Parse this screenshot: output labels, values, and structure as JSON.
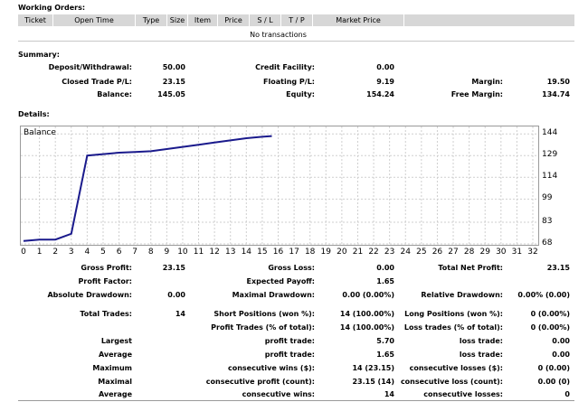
{
  "working_orders": {
    "title": "Working Orders:",
    "columns": [
      "Ticket",
      "Open Time",
      "Type",
      "Size",
      "Item",
      "Price",
      "S / L",
      "T / P",
      "Market Price"
    ],
    "empty_text": "No transactions"
  },
  "summary": {
    "title": "Summary:",
    "deposit_label": "Deposit/Withdrawal:",
    "deposit_value": "50.00",
    "credit_label": "Credit Facility:",
    "credit_value": "0.00",
    "closed_pl_label": "Closed Trade P/L:",
    "closed_pl_value": "23.15",
    "floating_pl_label": "Floating P/L:",
    "floating_pl_value": "9.19",
    "margin_label": "Margin:",
    "margin_value": "19.50",
    "balance_label": "Balance:",
    "balance_value": "145.05",
    "equity_label": "Equity:",
    "equity_value": "154.24",
    "free_margin_label": "Free Margin:",
    "free_margin_value": "134.74"
  },
  "details": {
    "title": "Details:"
  },
  "chart_data": {
    "type": "line",
    "title": "Balance",
    "x": [
      0,
      1,
      2,
      3,
      4,
      5,
      6,
      7,
      8,
      9,
      10,
      11,
      12,
      13,
      14,
      15,
      15.6
    ],
    "series": [
      {
        "values": [
          70,
          71,
          71,
          75,
          129,
          130,
          131,
          131.5,
          132,
          133.5,
          135,
          136.5,
          138,
          139.5,
          141,
          142,
          142.5
        ]
      }
    ],
    "x_ticks": [
      "0",
      "1",
      "2",
      "3",
      "4",
      "5",
      "6",
      "7",
      "8",
      "9",
      "10",
      "11",
      "12",
      "13",
      "14",
      "15",
      "16",
      "17",
      "18",
      "19",
      "20",
      "21",
      "22",
      "23",
      "24",
      "25",
      "26",
      "27",
      "28",
      "29",
      "30",
      "31",
      "32"
    ],
    "y_ticks": [
      "144",
      "129",
      "114",
      "99",
      "83",
      "68"
    ],
    "y_tick_values": [
      144,
      129,
      114,
      99,
      83,
      68
    ],
    "xlim": [
      0,
      32
    ],
    "ylim": [
      68,
      146
    ],
    "grid": true,
    "line_color": "#1a1a8c"
  },
  "stats": {
    "gross_profit_label": "Gross Profit:",
    "gross_profit_value": "23.15",
    "gross_loss_label": "Gross Loss:",
    "gross_loss_value": "0.00",
    "total_net_label": "Total Net Profit:",
    "total_net_value": "23.15",
    "profit_factor_label": "Profit Factor:",
    "profit_factor_value": "",
    "expected_payoff_label": "Expected Payoff:",
    "expected_payoff_value": "1.65",
    "abs_drawdown_label": "Absolute Drawdown:",
    "abs_drawdown_value": "0.00",
    "max_drawdown_label": "Maximal Drawdown:",
    "max_drawdown_value": "0.00 (0.00%)",
    "rel_drawdown_label": "Relative Drawdown:",
    "rel_drawdown_value": "0.00% (0.00)",
    "total_trades_label": "Total Trades:",
    "total_trades_value": "14",
    "short_pos_label": "Short Positions (won %):",
    "short_pos_value": "14 (100.00%)",
    "long_pos_label": "Long Positions (won %):",
    "long_pos_value": "0 (0.00%)",
    "profit_trades_label": "Profit Trades (% of total):",
    "profit_trades_value": "14 (100.00%)",
    "loss_trades_label": "Loss trades (% of total):",
    "loss_trades_value": "0 (0.00%)",
    "largest_label": "Largest",
    "largest_profit_label": "profit trade:",
    "largest_profit_value": "5.70",
    "largest_loss_label": "loss trade:",
    "largest_loss_value": "0.00",
    "average_label": "Average",
    "average_profit_label": "profit trade:",
    "average_profit_value": "1.65",
    "average_loss_label": "loss trade:",
    "average_loss_value": "0.00",
    "maximum_label": "Maximum",
    "max_wins_label": "consecutive wins ($):",
    "max_wins_value": "14 (23.15)",
    "max_losses_label": "consecutive losses ($):",
    "max_losses_value": "0 (0.00)",
    "maximal_label": "Maximal",
    "maximal_profit_label": "consecutive profit (count):",
    "maximal_profit_value": "23.15 (14)",
    "maximal_loss_label": "consecutive loss (count):",
    "maximal_loss_value": "0.00 (0)",
    "average2_label": "Average",
    "avg_wins_label": "consecutive wins:",
    "avg_wins_value": "14",
    "avg_losses_label": "consecutive losses:",
    "avg_losses_value": "0"
  }
}
